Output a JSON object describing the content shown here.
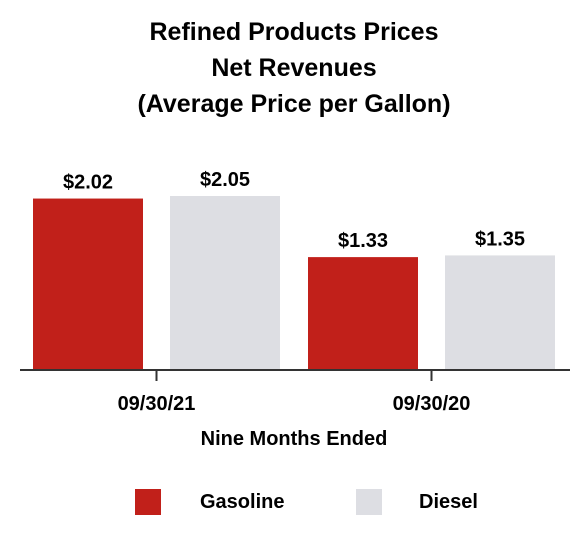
{
  "chart_data": {
    "type": "bar",
    "title": [
      "Refined Products Prices",
      "Net Revenues",
      "(Average Price per Gallon)"
    ],
    "xlabel": "Nine Months Ended",
    "ylabel": "",
    "categories": [
      "09/30/21",
      "09/30/20"
    ],
    "series": [
      {
        "name": "Gasoline",
        "values": [
          2.02,
          1.33
        ],
        "labels": [
          "$2.02",
          "$1.33"
        ],
        "color": "#C1201A"
      },
      {
        "name": "Diesel",
        "values": [
          2.05,
          1.35
        ],
        "labels": [
          "$2.05",
          "$1.35"
        ],
        "color": "#DDDEE3"
      }
    ],
    "ylim": [
      0,
      2.05
    ],
    "grid": false,
    "legend_position": "bottom"
  }
}
